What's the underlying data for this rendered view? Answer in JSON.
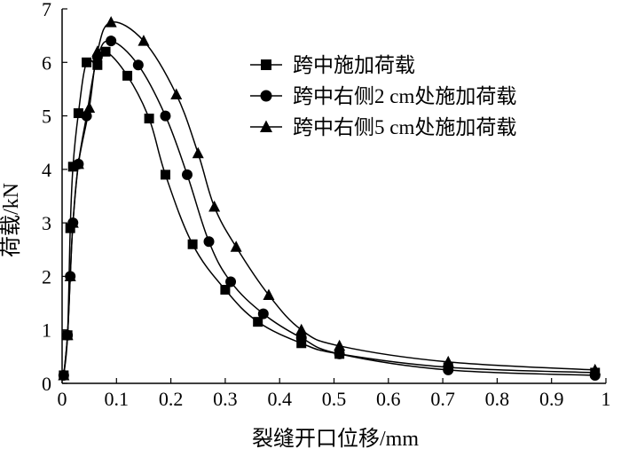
{
  "chart_data": {
    "type": "line",
    "title": "",
    "xlabel": "裂缝开口位移/mm",
    "ylabel": "荷载/kN",
    "xlim": [
      0,
      1.0
    ],
    "ylim": [
      0,
      7
    ],
    "xticks": [
      "0",
      "0.1",
      "0.2",
      "0.3",
      "0.4",
      "0.5",
      "0.6",
      "0.7",
      "0.8",
      "0.9",
      "1"
    ],
    "yticks": [
      "0",
      "1",
      "2",
      "3",
      "4",
      "5",
      "6",
      "7"
    ],
    "grid": false,
    "legend_position": "top-right",
    "series": [
      {
        "name": "跨中施加荷载",
        "marker": "square",
        "x": [
          0.003,
          0.01,
          0.015,
          0.02,
          0.03,
          0.045,
          0.065,
          0.08,
          0.12,
          0.16,
          0.19,
          0.24,
          0.3,
          0.36,
          0.44,
          0.51,
          0.71,
          0.98
        ],
        "y": [
          0.15,
          0.9,
          2.9,
          4.05,
          5.05,
          6.0,
          5.95,
          6.2,
          5.75,
          4.95,
          3.9,
          2.6,
          1.75,
          1.15,
          0.75,
          0.55,
          0.3,
          0.2
        ]
      },
      {
        "name": "跨中右侧2 cm处施加荷载",
        "marker": "circle",
        "x": [
          0.003,
          0.01,
          0.015,
          0.02,
          0.03,
          0.045,
          0.065,
          0.09,
          0.14,
          0.19,
          0.23,
          0.27,
          0.31,
          0.37,
          0.44,
          0.51,
          0.71,
          0.98
        ],
        "y": [
          0.15,
          0.9,
          2.0,
          3.0,
          4.1,
          5.0,
          6.1,
          6.4,
          5.95,
          5.0,
          3.9,
          2.65,
          1.9,
          1.3,
          0.85,
          0.55,
          0.25,
          0.15
        ]
      },
      {
        "name": "跨中右侧5 cm处施加荷载",
        "marker": "triangle",
        "x": [
          0.003,
          0.01,
          0.015,
          0.02,
          0.03,
          0.05,
          0.065,
          0.09,
          0.15,
          0.21,
          0.25,
          0.28,
          0.32,
          0.38,
          0.44,
          0.51,
          0.71,
          0.98
        ],
        "y": [
          0.15,
          0.9,
          2.0,
          3.0,
          4.1,
          5.15,
          6.2,
          6.75,
          6.4,
          5.4,
          4.3,
          3.3,
          2.55,
          1.65,
          1.0,
          0.7,
          0.4,
          0.25
        ]
      }
    ]
  }
}
